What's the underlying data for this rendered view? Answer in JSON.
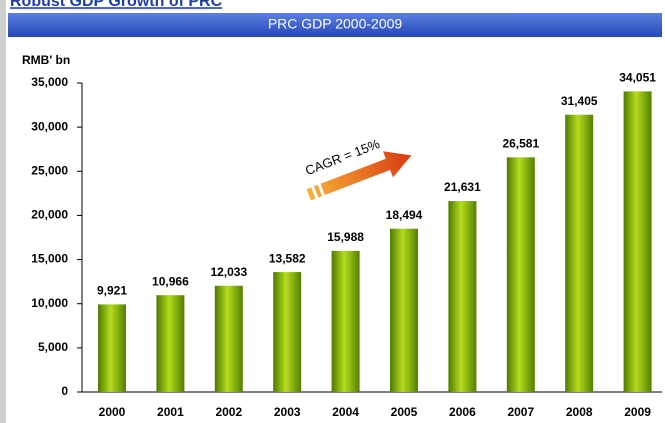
{
  "heading": "Robust GDP Growth of PRC",
  "chart_data": {
    "type": "bar",
    "title": "PRC GDP 2000-2009",
    "y_label": "RMB' bn",
    "annotation": "CAGR = 15%",
    "categories": [
      "2000",
      "2001",
      "2002",
      "2003",
      "2004",
      "2005",
      "2006",
      "2007",
      "2008",
      "2009"
    ],
    "values": [
      9921,
      10966,
      12033,
      13582,
      15988,
      18494,
      21631,
      26581,
      31405,
      34051
    ],
    "value_labels": [
      "9,921",
      "10,966",
      "12,033",
      "13,582",
      "15,988",
      "18,494",
      "21,631",
      "26,581",
      "31,405",
      "34,051"
    ],
    "color": "#8dbf0a",
    "ylim": [
      0,
      35000
    ],
    "yticks": [
      0,
      {
        "value": 5000,
        "label": "5,000"
      },
      {
        "value": 10000,
        "label": "10,000"
      },
      {
        "value": 15000,
        "label": "15,000"
      },
      {
        "value": 20000,
        "label": "20,000"
      },
      {
        "value": 25000,
        "label": "25,000"
      },
      {
        "value": 30000,
        "label": "30,000"
      },
      {
        "value": 35000,
        "label": "35,000"
      }
    ],
    "grid": false
  }
}
